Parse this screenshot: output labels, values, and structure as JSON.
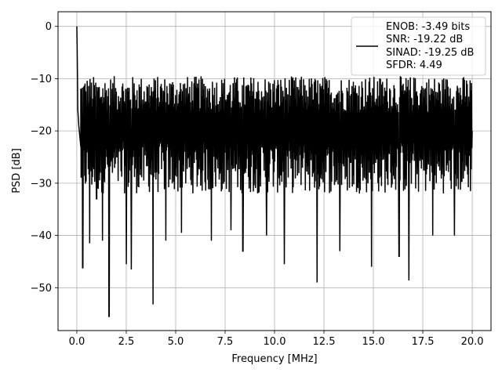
{
  "chart_data": {
    "type": "line",
    "title": "",
    "xlabel": "Frequency [MHz]",
    "ylabel": "PSD [dB]",
    "xlim": [
      -0.95,
      20.95
    ],
    "ylim": [
      -58.2,
      2.8
    ],
    "xticks": [
      0.0,
      2.5,
      5.0,
      7.5,
      10.0,
      12.5,
      15.0,
      17.5,
      20.0
    ],
    "xtick_labels": [
      "0.0",
      "2.5",
      "5.0",
      "7.5",
      "10.0",
      "12.5",
      "15.0",
      "17.5",
      "20.0"
    ],
    "yticks": [
      0,
      -10,
      -20,
      -30,
      -40,
      -50
    ],
    "ytick_labels": [
      "0",
      "−10",
      "−20",
      "−30",
      "−40",
      "−50"
    ],
    "grid": true,
    "legend_position": "top-right",
    "series": [
      {
        "color": "#000000",
        "line_style": "solid",
        "noise_band_db": [
          -35,
          -13
        ],
        "x": [
          0.0,
          0.02,
          0.05,
          0.1,
          0.2,
          0.3,
          0.65,
          1.0,
          1.3,
          1.63,
          2.5,
          2.75,
          3.85,
          4.5,
          5.3,
          6.8,
          7.8,
          8.4,
          9.6,
          10.5,
          12.15,
          13.3,
          14.9,
          16.3,
          16.8,
          18.0,
          19.1,
          20.0
        ],
        "y": [
          0.0,
          -5.0,
          -16.0,
          -19.0,
          -23.0,
          -46.2,
          -41.5,
          -33.0,
          -41.0,
          -55.5,
          -45.5,
          -46.5,
          -53.2,
          -41.0,
          -39.5,
          -41.0,
          -39.0,
          -43.0,
          -40.0,
          -45.5,
          -49.0,
          -43.0,
          -46.0,
          -44.0,
          -48.6,
          -40.0,
          -40.0,
          -20.0
        ]
      }
    ],
    "legend": {
      "entries": [
        "ENOB: -3.49 bits",
        "SNR: -19.22 dB",
        "SINAD: -19.25 dB",
        "SFDR: 4.49"
      ]
    }
  }
}
